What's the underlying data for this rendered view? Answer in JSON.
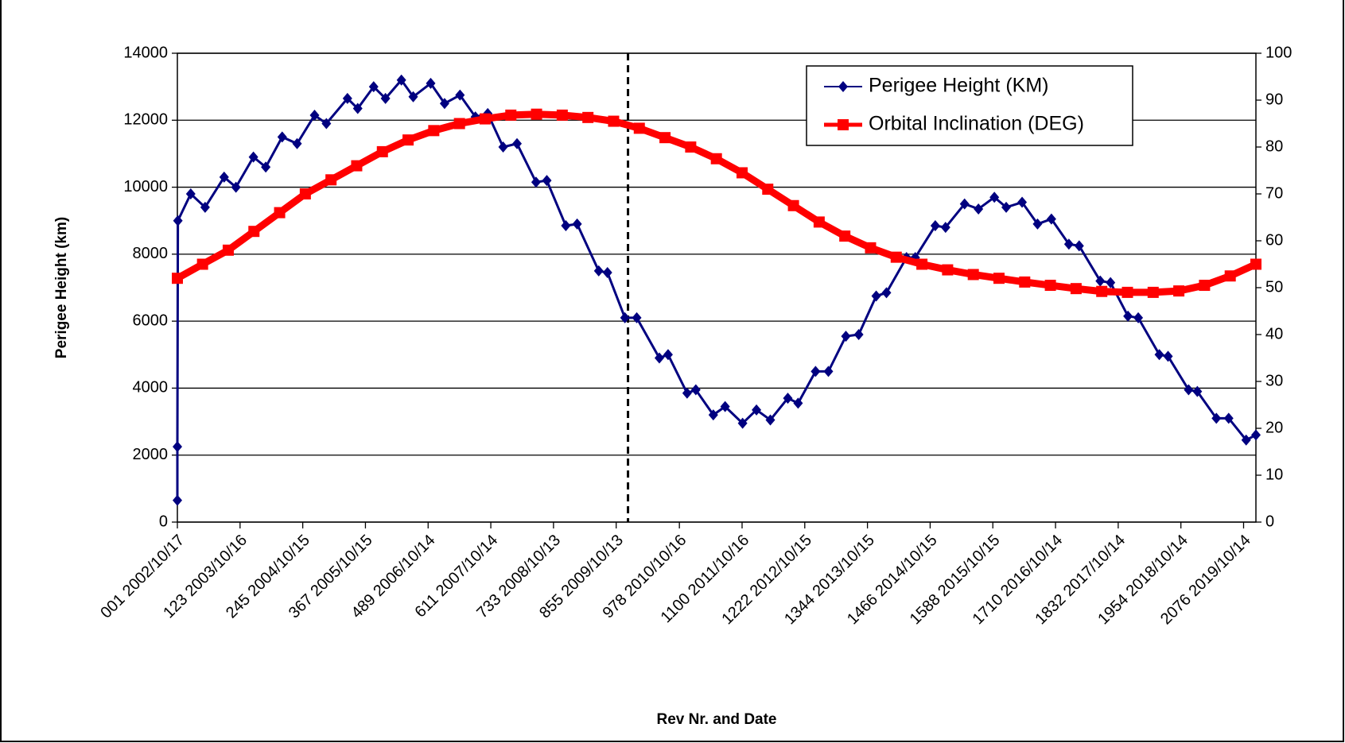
{
  "chart_data": {
    "type": "line",
    "xlabel": "Rev Nr. and Date",
    "ylabel": "Perigee Height (km)",
    "xlim": [
      1,
      2100
    ],
    "xticks": [
      {
        "value": 1,
        "label": "001  2002/10/17"
      },
      {
        "value": 123,
        "label": "123  2003/10/16"
      },
      {
        "value": 245,
        "label": "245  2004/10/15"
      },
      {
        "value": 367,
        "label": "367  2005/10/15"
      },
      {
        "value": 489,
        "label": "489  2006/10/14"
      },
      {
        "value": 611,
        "label": "611  2007/10/14"
      },
      {
        "value": 733,
        "label": "733  2008/10/13"
      },
      {
        "value": 855,
        "label": "855  2009/10/13"
      },
      {
        "value": 978,
        "label": "978  2010/10/16"
      },
      {
        "value": 1100,
        "label": "1100  2011/10/16"
      },
      {
        "value": 1222,
        "label": "1222  2012/10/15"
      },
      {
        "value": 1344,
        "label": "1344  2013/10/15"
      },
      {
        "value": 1466,
        "label": "1466  2014/10/15"
      },
      {
        "value": 1588,
        "label": "1588  2015/10/15"
      },
      {
        "value": 1710,
        "label": "1710  2016/10/14"
      },
      {
        "value": 1832,
        "label": "1832  2017/10/14"
      },
      {
        "value": 1954,
        "label": "1954  2018/10/14"
      },
      {
        "value": 2076,
        "label": "2076  2019/10/14"
      }
    ],
    "ylim": [
      0,
      14000
    ],
    "yticks": [
      0,
      2000,
      4000,
      6000,
      8000,
      10000,
      12000,
      14000
    ],
    "y2lim": [
      0,
      100
    ],
    "y2ticks": [
      0,
      10,
      20,
      30,
      40,
      50,
      60,
      70,
      80,
      90,
      100
    ],
    "grid": true,
    "legend": "upper right",
    "reference_line_x": 878,
    "series": [
      {
        "name": "Perigee Height (KM)",
        "color": "#000080",
        "marker": "diamond",
        "x": [
          1,
          1,
          2,
          27,
          55,
          92,
          115,
          149,
          173,
          205,
          234,
          268,
          291,
          332,
          352,
          383,
          406,
          437,
          460,
          494,
          521,
          551,
          581,
          605,
          635,
          662,
          699,
          720,
          757,
          779,
          821,
          838,
          872,
          895,
          939,
          956,
          993,
          1010,
          1044,
          1067,
          1101,
          1128,
          1155,
          1189,
          1209,
          1243,
          1268,
          1302,
          1327,
          1361,
          1381,
          1420,
          1437,
          1476,
          1496,
          1533,
          1560,
          1591,
          1614,
          1645,
          1675,
          1702,
          1736,
          1756,
          1797,
          1817,
          1851,
          1871,
          1912,
          1929,
          1969,
          1986,
          2023,
          2047,
          2081,
          2100
        ],
        "values": [
          650,
          2250,
          9000,
          9800,
          9400,
          10300,
          10000,
          10900,
          10600,
          11500,
          11300,
          12150,
          11900,
          12650,
          12350,
          13000,
          12650,
          13200,
          12700,
          13100,
          12500,
          12750,
          12100,
          12200,
          11200,
          11300,
          10150,
          10200,
          8850,
          8900,
          7500,
          7450,
          6100,
          6100,
          4900,
          5000,
          3850,
          3950,
          3200,
          3450,
          2950,
          3350,
          3050,
          3700,
          3550,
          4500,
          4500,
          5550,
          5600,
          6750,
          6850,
          7900,
          7900,
          8850,
          8800,
          9500,
          9350,
          9700,
          9400,
          9550,
          8900,
          9050,
          8300,
          8250,
          7200,
          7150,
          6150,
          6100,
          5000,
          4950,
          3950,
          3900,
          3100,
          3100,
          2450,
          2600
        ]
      },
      {
        "name": "Orbital Inclination (DEG)",
        "color": "#ff0000",
        "marker": "square",
        "axis": "y2",
        "x": [
          1,
          50,
          100,
          150,
          200,
          250,
          300,
          350,
          400,
          450,
          500,
          550,
          600,
          650,
          700,
          750,
          800,
          850,
          900,
          950,
          1000,
          1050,
          1100,
          1150,
          1200,
          1250,
          1300,
          1350,
          1400,
          1450,
          1500,
          1550,
          1600,
          1650,
          1700,
          1750,
          1800,
          1850,
          1900,
          1950,
          2000,
          2050,
          2100
        ],
        "values": [
          52,
          55,
          58,
          62,
          66,
          70,
          73,
          76,
          79,
          81.5,
          83.5,
          85,
          86,
          86.8,
          87,
          86.8,
          86.3,
          85.5,
          84,
          82,
          80,
          77.5,
          74.5,
          71,
          67.5,
          64,
          61,
          58.5,
          56.5,
          55,
          53.8,
          52.8,
          52,
          51.2,
          50.5,
          49.8,
          49.2,
          49,
          49,
          49.3,
          50.5,
          52.5,
          55
        ]
      }
    ]
  }
}
